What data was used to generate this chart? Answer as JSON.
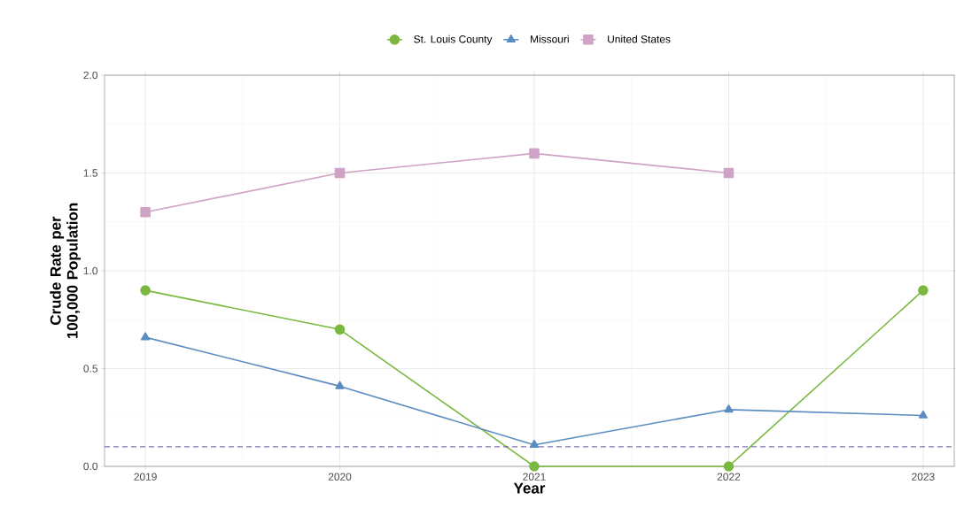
{
  "chart_data": {
    "type": "line",
    "xlabel": "Year",
    "ylabel": "Crude Rate per 100,000 Population",
    "x": [
      2019,
      2020,
      2021,
      2022,
      2023
    ],
    "series": [
      {
        "name": "St. Louis County",
        "color": "#7ab840",
        "marker": "circle",
        "values": [
          0.9,
          0.7,
          0,
          0,
          0.9
        ]
      },
      {
        "name": "Missouri",
        "color": "#5b8cc1",
        "marker": "triangle",
        "values": [
          0.66,
          0.41,
          0.11,
          0.29,
          0.26
        ]
      },
      {
        "name": "United States",
        "color": "#cfa3c6",
        "marker": "square",
        "values": [
          1.3,
          1.5,
          1.6,
          1.5,
          null
        ]
      }
    ],
    "xlim": [
      2018.79,
      2023.16
    ],
    "ylim": [
      0,
      2
    ],
    "xticks": [
      2019,
      2020,
      2021,
      2022,
      2023
    ],
    "yticks": [
      {
        "value": 0,
        "label": "0.0"
      },
      {
        "value": 0.5,
        "label": "0.5"
      },
      {
        "value": 1,
        "label": "1.0"
      },
      {
        "value": 1.5,
        "label": "1.5"
      },
      {
        "value": 2,
        "label": "2.0"
      }
    ],
    "ref_lines": [
      {
        "axis": "y",
        "value": 0.1,
        "color": "#6a4c9c",
        "line_style": "dashed"
      }
    ],
    "grid": true,
    "legend": "top",
    "line_style": "solid"
  }
}
